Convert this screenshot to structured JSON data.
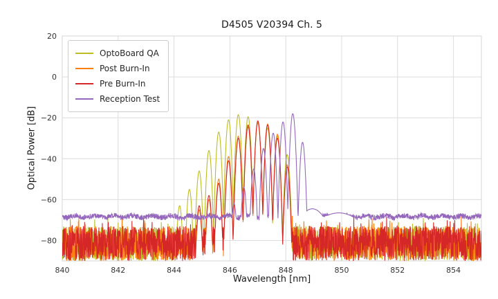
{
  "chart_data": {
    "type": "line",
    "title": "D4505 V20394 Ch. 5",
    "xlabel": "Wavelength [nm]",
    "ylabel": "Optical Power [dB]",
    "xlim": [
      840,
      855
    ],
    "ylim": [
      -90,
      20
    ],
    "xticks": [
      840,
      842,
      844,
      846,
      848,
      850,
      852,
      854
    ],
    "xticklabels": [
      "840",
      "842",
      "844",
      "846",
      "848",
      "850",
      "852",
      "854"
    ],
    "yticks": [
      20,
      0,
      -20,
      -40,
      -60,
      -80
    ],
    "yticklabels": [
      "20",
      "0",
      "−20",
      "−40",
      "−60",
      "−80"
    ],
    "grid": true,
    "legend_position": "upper-left",
    "series": [
      {
        "name": "OptoBoard QA",
        "color": "#bcbd22",
        "lobe": {
          "half_width_nm": 0.175,
          "drop_db": 45
        },
        "noise": {
          "type": "spiky",
          "base": -90,
          "range": 17,
          "spike_chance": 0.05,
          "spike_db": 4
        },
        "peaks": [
          [
            844.2,
            -63
          ],
          [
            844.55,
            -55
          ],
          [
            844.9,
            -46
          ],
          [
            845.25,
            -36
          ],
          [
            845.6,
            -27
          ],
          [
            845.95,
            -21
          ],
          [
            846.3,
            -18.5
          ],
          [
            846.65,
            -19.5
          ],
          [
            847.0,
            -22
          ],
          [
            847.35,
            -25
          ],
          [
            847.7,
            -29
          ],
          [
            848.05,
            -38
          ]
        ]
      },
      {
        "name": "Post Burn-In",
        "color": "#ff7f0e",
        "lobe": {
          "half_width_nm": 0.175,
          "drop_db": 45
        },
        "noise": {
          "type": "spiky",
          "base": -90,
          "range": 17,
          "spike_chance": 0.05,
          "spike_db": 4
        },
        "peaks": [
          [
            844.9,
            -65
          ],
          [
            845.25,
            -60
          ],
          [
            845.6,
            -50
          ],
          [
            845.95,
            -39
          ],
          [
            846.3,
            -29
          ],
          [
            846.65,
            -24.5
          ],
          [
            847.0,
            -22.5
          ],
          [
            847.35,
            -23
          ],
          [
            847.7,
            -28
          ],
          [
            848.05,
            -43
          ]
        ]
      },
      {
        "name": "Pre Burn-In",
        "color": "#d62728",
        "lobe": {
          "half_width_nm": 0.175,
          "drop_db": 45
        },
        "noise": {
          "type": "spiky",
          "base": -90,
          "range": 17,
          "spike_chance": 0.05,
          "spike_db": 4
        },
        "peaks": [
          [
            844.9,
            -63
          ],
          [
            845.25,
            -58
          ],
          [
            845.6,
            -52
          ],
          [
            845.95,
            -41
          ],
          [
            846.3,
            -30
          ],
          [
            846.65,
            -23.5
          ],
          [
            847.0,
            -21.5
          ],
          [
            847.35,
            -23.5
          ],
          [
            847.7,
            -30
          ],
          [
            848.05,
            -44
          ]
        ]
      },
      {
        "name": "Reception Test",
        "color": "#9467bd",
        "lobe": {
          "half_width_nm": 0.175,
          "drop_db": 45
        },
        "noise": {
          "type": "smooth",
          "base": -68.3,
          "ripple": 1.3,
          "bumps": [
            [
              848.95,
              -64.5,
              1.0
            ],
            [
              849.9,
              -66.5,
              1.8
            ]
          ]
        },
        "peaks": [
          [
            846.15,
            -62
          ],
          [
            846.5,
            -54
          ],
          [
            846.85,
            -45
          ],
          [
            847.2,
            -35
          ],
          [
            847.55,
            -27.5
          ],
          [
            847.9,
            -22
          ],
          [
            848.25,
            -18
          ],
          [
            848.6,
            -32
          ]
        ]
      }
    ]
  }
}
